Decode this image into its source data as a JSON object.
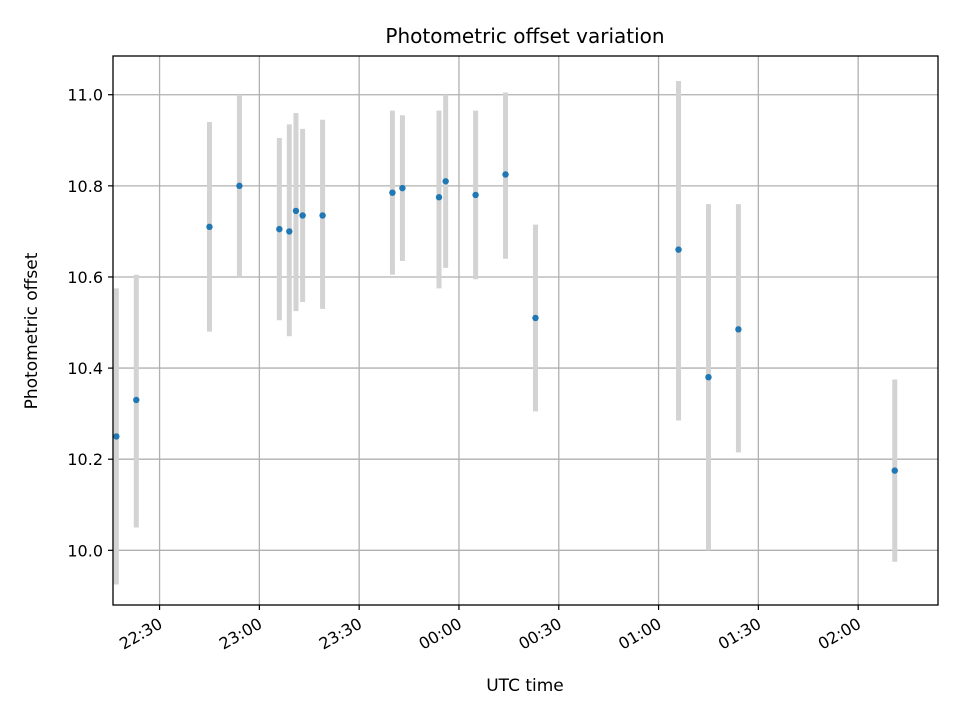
{
  "chart_data": {
    "type": "scatter",
    "title": "Photometric offset variation",
    "xlabel": "UTC time",
    "ylabel": "Photometric offset",
    "x_type": "time",
    "xlim": [
      "22:16",
      "02:24"
    ],
    "ylim": [
      9.88,
      11.085
    ],
    "grid": true,
    "x_ticks": [
      "22:30",
      "23:00",
      "23:30",
      "00:00",
      "00:30",
      "01:00",
      "01:30",
      "02:00"
    ],
    "x_tick_labels": [
      "22:30",
      "23:00",
      "23:30",
      "00:00",
      "00:30",
      "01:00",
      "01:30",
      "02:00"
    ],
    "y_ticks": [
      10.0,
      10.2,
      10.4,
      10.6,
      10.8,
      11.0
    ],
    "y_tick_labels": [
      "10.0",
      "10.2",
      "10.4",
      "10.6",
      "10.8",
      "11.0"
    ],
    "point_color": "#1f77b4",
    "errorbar_color": "#d3d3d3",
    "points": [
      {
        "x": "22:17",
        "y": 10.25,
        "ymin": 9.925,
        "ymax": 10.575
      },
      {
        "x": "22:23",
        "y": 10.33,
        "ymin": 10.05,
        "ymax": 10.605
      },
      {
        "x": "22:45",
        "y": 10.71,
        "ymin": 10.48,
        "ymax": 10.94
      },
      {
        "x": "22:54",
        "y": 10.8,
        "ymin": 10.6,
        "ymax": 11.0
      },
      {
        "x": "23:06",
        "y": 10.705,
        "ymin": 10.505,
        "ymax": 10.905
      },
      {
        "x": "23:09",
        "y": 10.7,
        "ymin": 10.47,
        "ymax": 10.935
      },
      {
        "x": "23:11",
        "y": 10.745,
        "ymin": 10.525,
        "ymax": 10.96
      },
      {
        "x": "23:13",
        "y": 10.735,
        "ymin": 10.545,
        "ymax": 10.925
      },
      {
        "x": "23:19",
        "y": 10.735,
        "ymin": 10.53,
        "ymax": 10.945
      },
      {
        "x": "23:40",
        "y": 10.785,
        "ymin": 10.605,
        "ymax": 10.965
      },
      {
        "x": "23:43",
        "y": 10.795,
        "ymin": 10.635,
        "ymax": 10.955
      },
      {
        "x": "23:54",
        "y": 10.775,
        "ymin": 10.575,
        "ymax": 10.965
      },
      {
        "x": "23:56",
        "y": 10.81,
        "ymin": 10.62,
        "ymax": 11.0
      },
      {
        "x": "00:05",
        "y": 10.78,
        "ymin": 10.595,
        "ymax": 10.965
      },
      {
        "x": "00:14",
        "y": 10.825,
        "ymin": 10.64,
        "ymax": 11.005
      },
      {
        "x": "00:23",
        "y": 10.51,
        "ymin": 10.305,
        "ymax": 10.715
      },
      {
        "x": "01:06",
        "y": 10.66,
        "ymin": 10.285,
        "ymax": 11.03
      },
      {
        "x": "01:15",
        "y": 10.38,
        "ymin": 10.0,
        "ymax": 10.76
      },
      {
        "x": "01:24",
        "y": 10.485,
        "ymin": 10.215,
        "ymax": 10.76
      },
      {
        "x": "02:11",
        "y": 10.175,
        "ymin": 9.975,
        "ymax": 10.375
      }
    ]
  }
}
